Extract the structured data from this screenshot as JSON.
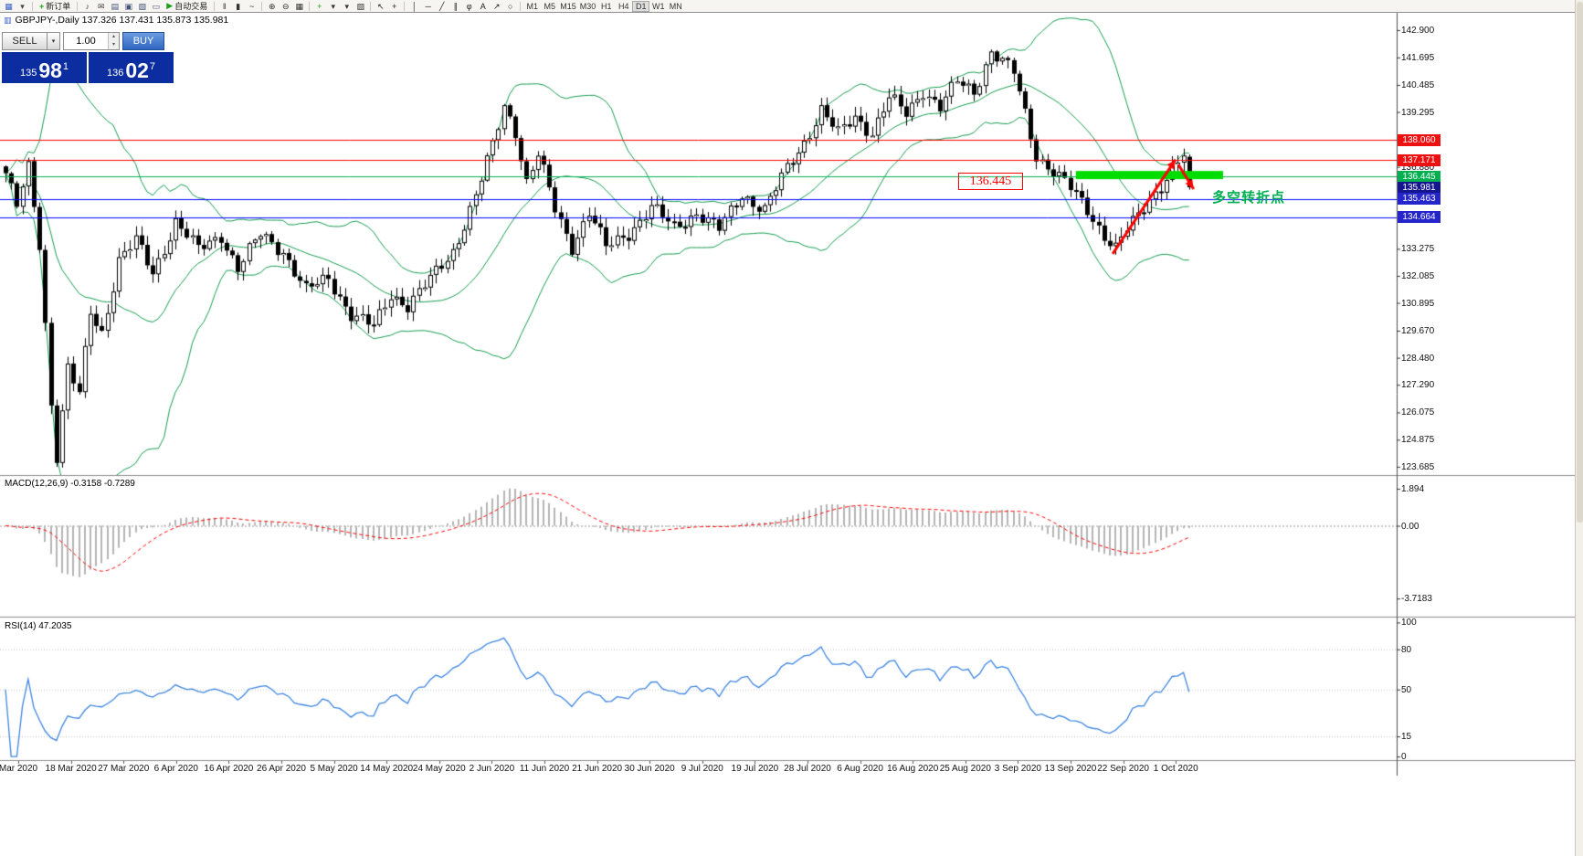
{
  "colors": {
    "bollinger": "#149b4e",
    "candle_up_fill": "#ffffff",
    "candle_down_fill": "#000000",
    "candle_border": "#000000",
    "macd_hist": "#b5b5b5",
    "macd_signal": "#ff0000",
    "rsi_line": "#3d85e0",
    "separator": "#8c8c8c",
    "axis_border": "#4d4d4d",
    "tick_dash": "#333333",
    "zone_green": "#00dd00",
    "arrow_red": "#ff0000"
  },
  "toolbar": {
    "new_order_label": "新订单",
    "autotrading_label": "自动交易",
    "timeframes": [
      "M1",
      "M5",
      "M15",
      "M30",
      "H1",
      "H4",
      "D1",
      "W1",
      "MN"
    ],
    "active_timeframe": "D1",
    "items": [
      {
        "t": "icon",
        "name": "new-chart-icon",
        "g": "▦",
        "c": "#3a62c4"
      },
      {
        "t": "icon",
        "name": "chart-profiles-icon",
        "g": "▾",
        "c": "#444444"
      },
      {
        "t": "sep"
      },
      {
        "t": "button",
        "name": "new-order-button",
        "g": "+",
        "gc": "#1a9e1a",
        "label_key": "new_order_label"
      },
      {
        "t": "sep"
      },
      {
        "t": "icon",
        "name": "sound-alert-icon",
        "g": "♪",
        "c": "#444444"
      },
      {
        "t": "icon",
        "name": "mailbox-icon",
        "g": "✉",
        "c": "#444444"
      },
      {
        "t": "icon",
        "name": "market-watch-icon",
        "g": "▤",
        "c": "#445577"
      },
      {
        "t": "icon",
        "name": "data-window-icon",
        "g": "▣",
        "c": "#445577"
      },
      {
        "t": "icon",
        "name": "navigator-icon",
        "g": "▧",
        "c": "#445577"
      },
      {
        "t": "icon",
        "name": "terminal-icon",
        "g": "▭",
        "c": "#445577"
      },
      {
        "t": "button",
        "name": "autotrading-button",
        "g": "▶",
        "gc": "#1a9e1a",
        "label_key": "autotrading_label"
      },
      {
        "t": "sep"
      },
      {
        "t": "icon",
        "name": "bar-chart-mode-icon",
        "g": "‖",
        "c": "#333333"
      },
      {
        "t": "icon",
        "name": "candlestick-mode-icon",
        "g": "▮",
        "c": "#333333"
      },
      {
        "t": "icon",
        "name": "line-chart-mode-icon",
        "g": "~",
        "c": "#333333"
      },
      {
        "t": "sep"
      },
      {
        "t": "icon",
        "name": "zoom-in-icon",
        "g": "⊕",
        "c": "#333333"
      },
      {
        "t": "icon",
        "name": "zoom-out-icon",
        "g": "⊖",
        "c": "#333333"
      },
      {
        "t": "icon",
        "name": "tile-windows-icon",
        "g": "▦",
        "c": "#333333"
      },
      {
        "t": "sep"
      },
      {
        "t": "icon",
        "name": "indicators-icon",
        "g": "+",
        "c": "#1a9e1a"
      },
      {
        "t": "icon",
        "name": "indicators-dropdown-icon",
        "g": "▾",
        "c": "#333333"
      },
      {
        "t": "icon",
        "name": "periods-dropdown-icon",
        "g": "▾",
        "c": "#333333"
      },
      {
        "t": "icon",
        "name": "templates-icon",
        "g": "▨",
        "c": "#333333"
      },
      {
        "t": "sep"
      },
      {
        "t": "icon",
        "name": "cursor-icon",
        "g": "↖",
        "c": "#222222"
      },
      {
        "t": "icon",
        "name": "crosshair-icon",
        "g": "+",
        "c": "#222222"
      },
      {
        "t": "sep"
      },
      {
        "t": "icon",
        "name": "vertical-line-icon",
        "g": "│",
        "c": "#222222"
      },
      {
        "t": "icon",
        "name": "horizontal-line-icon",
        "g": "─",
        "c": "#222222"
      },
      {
        "t": "icon",
        "name": "trendline-icon",
        "g": "╱",
        "c": "#222222"
      },
      {
        "t": "icon",
        "name": "channel-icon",
        "g": "∥",
        "c": "#222222"
      },
      {
        "t": "icon",
        "name": "fibonacci-icon",
        "g": "φ",
        "c": "#222222"
      },
      {
        "t": "icon",
        "name": "text-tool-icon",
        "g": "A",
        "c": "#222222"
      },
      {
        "t": "icon",
        "name": "arrows-tool-icon",
        "g": "↗",
        "c": "#222222"
      },
      {
        "t": "icon",
        "name": "shapes-tool-icon",
        "g": "○",
        "c": "#222222"
      },
      {
        "t": "sep"
      }
    ]
  },
  "trade_panel": {
    "sell_label": "SELL",
    "buy_label": "BUY",
    "volume_value": "1.00",
    "sell_price_small": "135",
    "sell_price_big": "98",
    "sell_price_sup": "1",
    "buy_price_small": "136",
    "buy_price_big": "02",
    "buy_price_sup": "7"
  },
  "chart_data": {
    "type": "candlestick",
    "symbol": "GBPJPY-",
    "timeframe": "Daily",
    "header_text": "GBPJPY-,Daily 137.326 137.431 135.873 135.981",
    "ohlc": {
      "open": 137.326,
      "high": 137.431,
      "low": 135.873,
      "close": 135.981
    },
    "price_range_visible": [
      123.32,
      143.66
    ],
    "bars_visible": 210,
    "bollinger_period": 20,
    "close_anchors": [
      [
        0,
        136.6
      ],
      [
        2,
        135.1
      ],
      [
        4,
        136.8
      ],
      [
        6,
        133.5
      ],
      [
        8,
        126.5
      ],
      [
        9,
        124.2
      ],
      [
        11,
        128.0
      ],
      [
        13,
        126.8
      ],
      [
        15,
        130.5
      ],
      [
        17,
        129.6
      ],
      [
        20,
        132.8
      ],
      [
        23,
        133.6
      ],
      [
        26,
        132.2
      ],
      [
        30,
        134.5
      ],
      [
        34,
        133.2
      ],
      [
        38,
        133.9
      ],
      [
        41,
        132.4
      ],
      [
        45,
        133.9
      ],
      [
        49,
        133.2
      ],
      [
        53,
        131.4
      ],
      [
        57,
        132.0
      ],
      [
        61,
        130.4
      ],
      [
        65,
        129.8
      ],
      [
        68,
        131.3
      ],
      [
        71,
        130.8
      ],
      [
        75,
        131.9
      ],
      [
        79,
        133.2
      ],
      [
        83,
        135.6
      ],
      [
        86,
        137.8
      ],
      [
        88,
        139.6
      ],
      [
        90,
        138.5
      ],
      [
        92,
        136.2
      ],
      [
        94,
        137.4
      ],
      [
        97,
        135.0
      ],
      [
        100,
        133.4
      ],
      [
        103,
        134.9
      ],
      [
        106,
        133.3
      ],
      [
        110,
        134.0
      ],
      [
        114,
        135.1
      ],
      [
        118,
        134.2
      ],
      [
        122,
        134.9
      ],
      [
        126,
        134.1
      ],
      [
        130,
        135.7
      ],
      [
        134,
        135.0
      ],
      [
        138,
        136.8
      ],
      [
        141,
        138.0
      ],
      [
        144,
        139.4
      ],
      [
        147,
        138.3
      ],
      [
        150,
        139.1
      ],
      [
        153,
        138.4
      ],
      [
        156,
        139.9
      ],
      [
        159,
        139.2
      ],
      [
        162,
        140.3
      ],
      [
        165,
        139.5
      ],
      [
        168,
        140.6
      ],
      [
        171,
        140.2
      ],
      [
        174,
        142.0
      ],
      [
        176,
        141.5
      ],
      [
        178,
        141.0
      ],
      [
        180,
        139.2
      ],
      [
        182,
        137.4
      ],
      [
        185,
        136.7
      ],
      [
        188,
        135.9
      ],
      [
        191,
        135.0
      ],
      [
        194,
        133.9
      ],
      [
        196,
        133.3
      ],
      [
        198,
        134.1
      ],
      [
        200,
        134.7
      ],
      [
        202,
        135.5
      ],
      [
        204,
        136.1
      ],
      [
        206,
        136.8
      ],
      [
        208,
        137.35
      ],
      [
        209,
        135.981
      ]
    ],
    "last_bar": {
      "open": 137.326,
      "high": 137.431,
      "low": 135.873,
      "close": 135.981
    },
    "levels": [
      {
        "price": 138.06,
        "color": "#ff0000"
      },
      {
        "price": 137.171,
        "color": "#ff0000"
      },
      {
        "price": 136.445,
        "color": "#00b050"
      },
      {
        "price": 135.463,
        "color": "#0000ff"
      },
      {
        "price": 134.664,
        "color": "#0000ff"
      }
    ],
    "price_axis": {
      "ticks": [
        {
          "label": "142.900",
          "price": 142.9
        },
        {
          "label": "141.695",
          "price": 141.695
        },
        {
          "label": "140.485",
          "price": 140.485
        },
        {
          "label": "139.295",
          "price": 139.295
        },
        {
          "label": "136.880",
          "price": 136.88
        },
        {
          "label": "133.275",
          "price": 133.275
        },
        {
          "label": "132.085",
          "price": 132.085
        },
        {
          "label": "130.895",
          "price": 130.895
        },
        {
          "label": "129.670",
          "price": 129.67
        },
        {
          "label": "128.480",
          "price": 128.48
        },
        {
          "label": "127.290",
          "price": 127.29
        },
        {
          "label": "126.075",
          "price": 126.075
        },
        {
          "label": "124.875",
          "price": 124.875
        },
        {
          "label": "123.685",
          "price": 123.685
        }
      ],
      "boxes": [
        {
          "label": "138.060",
          "price": 138.06,
          "bg": "#ee1111"
        },
        {
          "label": "137.171",
          "price": 137.171,
          "bg": "#ee1111"
        },
        {
          "label": "136.445",
          "price": 136.445,
          "bg": "#00b050"
        },
        {
          "label": "135.981",
          "price": 135.981,
          "bg": "#15158f"
        },
        {
          "label": "135.463",
          "price": 135.463,
          "bg": "#2525cc"
        },
        {
          "label": "134.664",
          "price": 134.664,
          "bg": "#2525cc"
        }
      ]
    },
    "macd": {
      "label": "MACD(12,26,9) -0.3158 -0.7289",
      "params": [
        12,
        26,
        9
      ],
      "value": -0.3158,
      "signal_value": -0.7289,
      "ticks": [
        {
          "label": "1.894",
          "v": 1.894
        },
        {
          "label": "0.00",
          "v": 0
        },
        {
          "label": "-3.7183",
          "v": -3.7183
        }
      ],
      "range": [
        -4.6,
        2.5
      ]
    },
    "rsi": {
      "label": "RSI(14) 47.2035",
      "period": 14,
      "value": 47.2035,
      "ticks": [
        {
          "label": "100",
          "v": 100
        },
        {
          "label": "80",
          "v": 80
        },
        {
          "label": "50",
          "v": 50
        },
        {
          "label": "15",
          "v": 15
        },
        {
          "label": "0",
          "v": 0
        }
      ],
      "levels": [
        80,
        50,
        15
      ],
      "range": [
        -2,
        103
      ]
    },
    "time_axis": [
      "Mar 2020",
      "18 Mar 2020",
      "27 Mar 2020",
      "6 Apr 2020",
      "16 Apr 2020",
      "26 Apr 2020",
      "5 May 2020",
      "14 May 2020",
      "24 May 2020",
      "2 Jun 2020",
      "11 Jun 2020",
      "21 Jun 2020",
      "30 Jun 2020",
      "9 Jul 2020",
      "19 Jul 2020",
      "28 Jul 2020",
      "6 Aug 2020",
      "16 Aug 2020",
      "25 Aug 2020",
      "3 Sep 2020",
      "13 Sep 2020",
      "22 Sep 2020",
      "1 Oct 2020"
    ],
    "annotations": {
      "callout_text": "136.445",
      "note_text": "多空转折点",
      "zone": {
        "bar_start": 189,
        "bar_end": 215,
        "price": 136.52,
        "thickness": 9,
        "color": "#00dd00"
      },
      "trend_arrow": {
        "from_bar": 195.5,
        "from_price": 133.05,
        "to_bar": 206.6,
        "to_price": 137.2,
        "color": "#ff0000",
        "width": 3
      },
      "reject_arrow": {
        "from_bar": 207.1,
        "from_price": 136.98,
        "to_bar": 209.8,
        "to_price": 135.9,
        "color": "#ff0000",
        "width": 3
      }
    }
  }
}
